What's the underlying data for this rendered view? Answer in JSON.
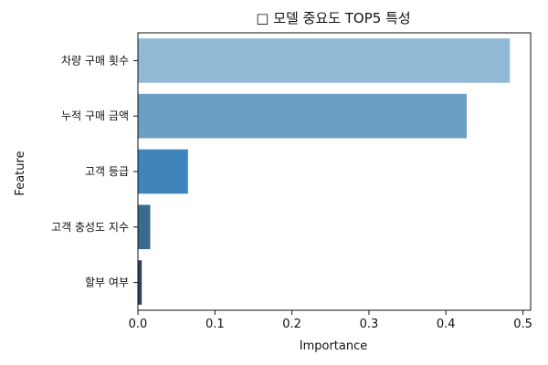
{
  "chart_data": {
    "type": "bar",
    "orientation": "horizontal",
    "title": "□ 모델 중요도 TOP5 특성",
    "xlabel": "Importance",
    "ylabel": "Feature",
    "categories": [
      "차량 구매 횟수",
      "누적 구매 금액",
      "고객 등급",
      "고객 충성도 지수",
      "할부 여부"
    ],
    "values": [
      0.483,
      0.427,
      0.065,
      0.016,
      0.005
    ],
    "xlim": [
      0,
      0.51
    ],
    "xticks": [
      0.0,
      0.1,
      0.2,
      0.3,
      0.4,
      0.5
    ],
    "xtick_labels": [
      "0.0",
      "0.1",
      "0.2",
      "0.3",
      "0.4",
      "0.5"
    ],
    "bar_colors": [
      "#91b9d6",
      "#6b9fc4",
      "#3f84ba",
      "#3b6a8f",
      "#2f4458"
    ],
    "grid": false,
    "legend": "none"
  }
}
